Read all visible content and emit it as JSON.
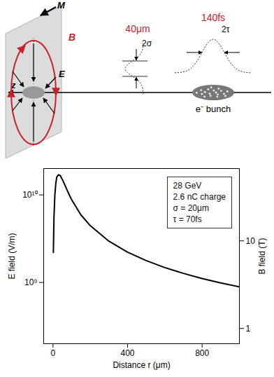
{
  "diagram": {
    "axis_label": "z",
    "plane_label": "M",
    "magnetic_label": "B",
    "electric_label": "E",
    "transverse_size": "40μm",
    "transverse_symbol": "2σ",
    "bunch_length": "140fs",
    "length_symbol": "2τ",
    "bunch_label": "e⁻ bunch"
  },
  "chart_data": {
    "type": "line",
    "x_label": "Distance r (μm)",
    "y_label": "E field (V/m)",
    "y2_label": "B field (T)",
    "log": "y",
    "xlim": [
      -50,
      1000
    ],
    "xticks": [
      0,
      400,
      800
    ],
    "ylim": [
      200000000,
      20000000000
    ],
    "yticks": [
      {
        "value": 1000000000,
        "label": "10⁹"
      },
      {
        "value": 10000000000,
        "label": "10¹⁰"
      }
    ],
    "y2lim": [
      0.67,
      67
    ],
    "y2ticks": [
      1,
      10
    ],
    "annotations": [
      "28 GeV",
      "2.6 nC charge",
      "σ = 20μm",
      "τ = 70fs"
    ],
    "series": [
      {
        "name": "E field",
        "color": "#000000",
        "x": [
          2,
          5,
          10,
          15,
          20,
          30,
          40,
          50,
          60,
          80,
          100,
          150,
          200,
          300,
          400,
          500,
          600,
          700,
          800,
          900,
          1000
        ],
        "values": [
          2200000000,
          5400000000,
          10000000000,
          13500000000,
          16000000000,
          17000000000,
          16500000000,
          15000000000,
          13500000000,
          10800000000,
          8800000000,
          5900000000,
          4450000000,
          2960000000,
          2220000000,
          1780000000,
          1480000000,
          1270000000,
          1110000000,
          990000000,
          890000000
        ]
      }
    ]
  }
}
